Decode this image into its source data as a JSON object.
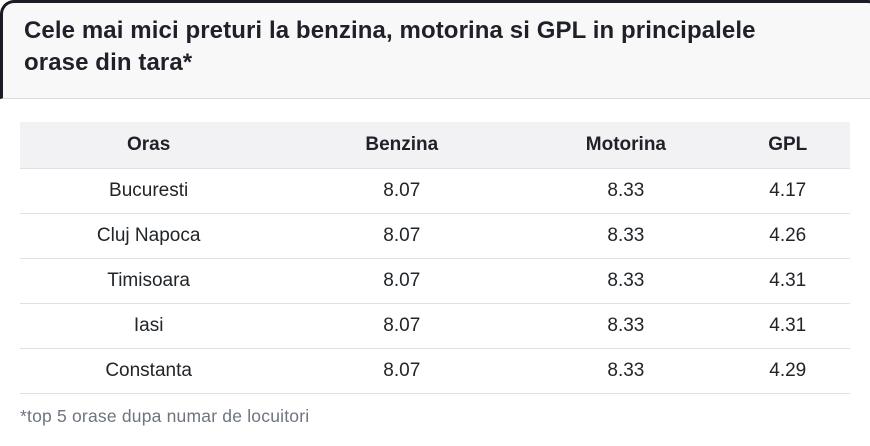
{
  "title": "Cele mai mici preturi la benzina, motorina si GPL in principalele orase din tara*",
  "footnote": "*top 5 orase dupa numar de locuitori",
  "table": {
    "columns": [
      "Oras",
      "Benzina",
      "Motorina",
      "GPL"
    ],
    "rows": [
      [
        "Bucuresti",
        "8.07",
        "8.33",
        "4.17"
      ],
      [
        "Cluj Napoca",
        "8.07",
        "8.33",
        "4.26"
      ],
      [
        "Timisoara",
        "8.07",
        "8.33",
        "4.31"
      ],
      [
        "Iasi",
        "8.07",
        "8.33",
        "4.31"
      ],
      [
        "Constanta",
        "8.07",
        "8.33",
        "4.29"
      ]
    ]
  },
  "chart_data": {
    "type": "table",
    "title": "Cele mai mici preturi la benzina, motorina si GPL in principalele orase din tara*",
    "categories": [
      "Bucuresti",
      "Cluj Napoca",
      "Timisoara",
      "Iasi",
      "Constanta"
    ],
    "series": [
      {
        "name": "Benzina",
        "values": [
          8.07,
          8.07,
          8.07,
          8.07,
          8.07
        ]
      },
      {
        "name": "Motorina",
        "values": [
          8.33,
          8.33,
          8.33,
          8.33,
          8.33
        ]
      },
      {
        "name": "GPL",
        "values": [
          4.17,
          4.26,
          4.31,
          4.31,
          4.29
        ]
      }
    ],
    "footnote": "*top 5 orase dupa numar de locuitori"
  },
  "colors": {
    "border_dark": "#1b1b26",
    "divider": "#d9d9de",
    "header_bg": "#f2f2f4",
    "row_border": "#dee2e6",
    "title_bg": "#f8f8f9",
    "text_dark": "#1f2129",
    "text_body": "#212529",
    "text_muted": "#6e757e",
    "page_bg": "#ffffff"
  }
}
